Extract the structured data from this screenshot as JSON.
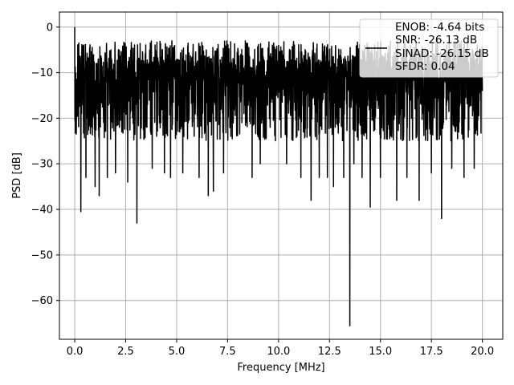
{
  "chart_data": {
    "type": "line",
    "xlabel": "Frequency [MHz]",
    "ylabel": "PSD [dB]",
    "xlim": [
      -0.75,
      21.0
    ],
    "ylim": [
      -68.5,
      3.3
    ],
    "x_ticks": [
      0.0,
      2.5,
      5.0,
      7.5,
      10.0,
      12.5,
      15.0,
      17.5,
      20.0
    ],
    "x_tick_labels": [
      "0.0",
      "2.5",
      "5.0",
      "7.5",
      "10.0",
      "12.5",
      "15.0",
      "17.5",
      "20.0"
    ],
    "y_ticks": [
      0,
      -10,
      -20,
      -30,
      -40,
      -50,
      -60
    ],
    "y_tick_labels": [
      "0",
      "−10",
      "−20",
      "−30",
      "−40",
      "−50",
      "−60"
    ],
    "grid": true,
    "legend_position": "top-right",
    "line_color": "#000000",
    "legend": [
      "ENOB: -4.64 bits",
      "SNR: -26.13 dB",
      "SINAD: -26.15 dB",
      "SFDR: 0.04"
    ],
    "series": [
      {
        "type": "noisy-psd",
        "x_range": [
          0.0,
          20.0
        ],
        "peaks": [
          [
            0.0,
            0.0
          ]
        ],
        "notches": [
          [
            0.3,
            -40.5
          ],
          [
            0.55,
            -33
          ],
          [
            1.0,
            -35
          ],
          [
            1.2,
            -37
          ],
          [
            1.6,
            -33
          ],
          [
            2.0,
            -32
          ],
          [
            2.6,
            -34
          ],
          [
            3.05,
            -43
          ],
          [
            3.8,
            -31
          ],
          [
            4.4,
            -32
          ],
          [
            4.7,
            -33
          ],
          [
            5.3,
            -32
          ],
          [
            6.1,
            -33
          ],
          [
            6.55,
            -37
          ],
          [
            6.8,
            -36
          ],
          [
            7.3,
            -32
          ],
          [
            8.7,
            -33
          ],
          [
            9.1,
            -30
          ],
          [
            10.4,
            -30
          ],
          [
            11.1,
            -33
          ],
          [
            11.6,
            -38
          ],
          [
            12.0,
            -33
          ],
          [
            12.4,
            -33
          ],
          [
            12.7,
            -35
          ],
          [
            13.2,
            -33
          ],
          [
            13.5,
            -65.5
          ],
          [
            13.7,
            -30
          ],
          [
            14.1,
            -33
          ],
          [
            14.5,
            -39.5
          ],
          [
            15.0,
            -33
          ],
          [
            15.8,
            -38
          ],
          [
            16.3,
            -33
          ],
          [
            16.9,
            -38
          ],
          [
            17.5,
            -32
          ],
          [
            18.0,
            -42
          ],
          [
            18.5,
            -31
          ],
          [
            19.1,
            -33
          ],
          [
            19.6,
            -31
          ]
        ],
        "band_top": -3,
        "band_center": -14,
        "band_bottom": -25
      }
    ]
  }
}
